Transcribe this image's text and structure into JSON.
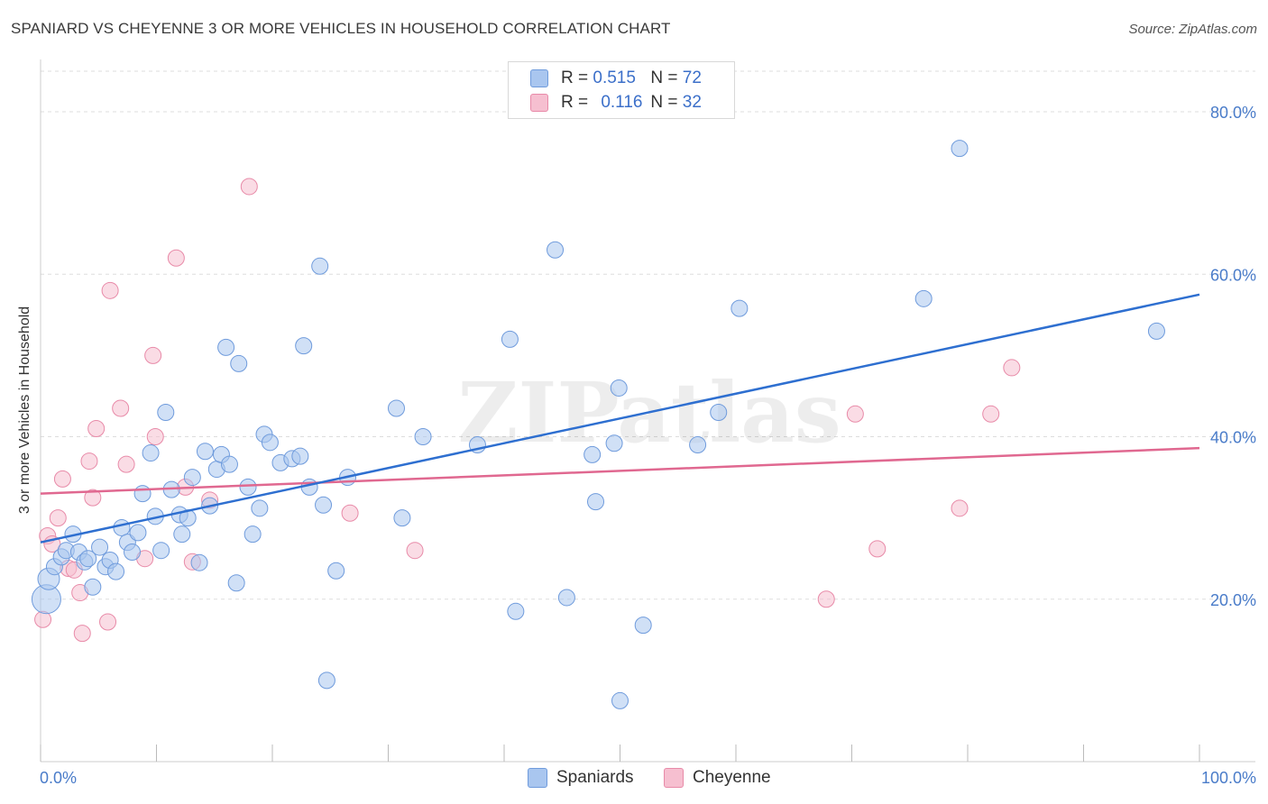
{
  "title": "SPANIARD VS CHEYENNE 3 OR MORE VEHICLES IN HOUSEHOLD CORRELATION CHART",
  "source": "Source: ZipAtlas.com",
  "watermark": "ZIPatlas",
  "legend_top": {
    "rows": [
      {
        "r_label": "R =",
        "r_value": "0.515",
        "n_label": "N =",
        "n_value": "72"
      },
      {
        "r_label": "R =",
        "r_value": "0.116",
        "n_label": "N =",
        "n_value": "32"
      }
    ]
  },
  "legend_bottom": [
    "Spaniards",
    "Cheyenne"
  ],
  "chart_data": {
    "type": "scatter",
    "xlabel": "",
    "ylabel": "3 or more Vehicles in Household",
    "xlim": [
      0,
      100
    ],
    "ylim": [
      0,
      85
    ],
    "x_tick_labels": [
      "0.0%",
      "100.0%"
    ],
    "y_ticks": [
      20,
      40,
      60,
      80
    ],
    "y_tick_labels": [
      "20.0%",
      "40.0%",
      "60.0%",
      "80.0%"
    ],
    "grid": true,
    "colors": {
      "spaniards": "#a9c6ef",
      "spaniards_edge": "#6f9bdc",
      "spaniards_line": "#2e6fd0",
      "cheyenne": "#f6bfd0",
      "cheyenne_edge": "#e88aa8",
      "cheyenne_line": "#e06890"
    },
    "series": [
      {
        "name": "Spaniards",
        "r": 0.515,
        "n": 72,
        "trend": [
          [
            0,
            27.0
          ],
          [
            100,
            57.5
          ]
        ],
        "points": [
          [
            0.5,
            20
          ],
          [
            0.7,
            22.5
          ],
          [
            1.2,
            24
          ],
          [
            1.8,
            25.2
          ],
          [
            2.2,
            26
          ],
          [
            2.8,
            28
          ],
          [
            3.3,
            25.8
          ],
          [
            3.8,
            24.6
          ],
          [
            4.1,
            25
          ],
          [
            4.5,
            21.5
          ],
          [
            5.1,
            26.4
          ],
          [
            5.6,
            24
          ],
          [
            6.0,
            24.8
          ],
          [
            6.5,
            23.4
          ],
          [
            7.0,
            28.8
          ],
          [
            7.5,
            27
          ],
          [
            7.9,
            25.8
          ],
          [
            8.4,
            28.2
          ],
          [
            8.8,
            33
          ],
          [
            9.5,
            38
          ],
          [
            9.9,
            30.2
          ],
          [
            10.4,
            26
          ],
          [
            10.8,
            43
          ],
          [
            11.3,
            33.5
          ],
          [
            12.0,
            30.4
          ],
          [
            12.2,
            28
          ],
          [
            12.7,
            30
          ],
          [
            13.1,
            35
          ],
          [
            13.7,
            24.5
          ],
          [
            14.2,
            38.2
          ],
          [
            14.6,
            31.5
          ],
          [
            15.2,
            36
          ],
          [
            15.6,
            37.8
          ],
          [
            16.3,
            36.6
          ],
          [
            16.9,
            22
          ],
          [
            17.1,
            49
          ],
          [
            16.0,
            51
          ],
          [
            17.9,
            33.8
          ],
          [
            18.3,
            28
          ],
          [
            18.9,
            31.2
          ],
          [
            19.3,
            40.3
          ],
          [
            19.8,
            39.3
          ],
          [
            20.7,
            36.8
          ],
          [
            21.7,
            37.3
          ],
          [
            22.4,
            37.6
          ],
          [
            22.7,
            51.2
          ],
          [
            23.2,
            33.8
          ],
          [
            24.1,
            61
          ],
          [
            24.4,
            31.6
          ],
          [
            25.5,
            23.5
          ],
          [
            26.5,
            35
          ],
          [
            30.7,
            43.5
          ],
          [
            31.2,
            30
          ],
          [
            33.0,
            40
          ],
          [
            37.7,
            39
          ],
          [
            40.5,
            52
          ],
          [
            41.0,
            18.5
          ],
          [
            44.4,
            63
          ],
          [
            45.4,
            20.2
          ],
          [
            47.6,
            37.8
          ],
          [
            47.9,
            32
          ],
          [
            49.9,
            46
          ],
          [
            49.5,
            39.2
          ],
          [
            50.0,
            7.5
          ],
          [
            52.0,
            16.8
          ],
          [
            56.7,
            39
          ],
          [
            58.5,
            43
          ],
          [
            60.3,
            55.8
          ],
          [
            24.7,
            10
          ],
          [
            76.2,
            57
          ],
          [
            79.3,
            75.5
          ],
          [
            96.3,
            53
          ]
        ]
      },
      {
        "name": "Cheyenne",
        "r": 0.116,
        "n": 32,
        "trend": [
          [
            0,
            33.0
          ],
          [
            100,
            38.6
          ]
        ],
        "points": [
          [
            0.2,
            17.5
          ],
          [
            0.6,
            27.8
          ],
          [
            1.0,
            26.8
          ],
          [
            1.5,
            30
          ],
          [
            1.9,
            34.8
          ],
          [
            2.4,
            23.8
          ],
          [
            2.9,
            23.6
          ],
          [
            3.4,
            20.8
          ],
          [
            3.6,
            15.8
          ],
          [
            4.2,
            37
          ],
          [
            4.5,
            32.5
          ],
          [
            4.8,
            41
          ],
          [
            5.8,
            17.2
          ],
          [
            6.0,
            58
          ],
          [
            6.9,
            43.5
          ],
          [
            7.4,
            36.6
          ],
          [
            9.0,
            25
          ],
          [
            9.7,
            50
          ],
          [
            9.9,
            40
          ],
          [
            11.7,
            62
          ],
          [
            12.5,
            33.8
          ],
          [
            13.1,
            24.6
          ],
          [
            14.6,
            32.2
          ],
          [
            26.7,
            30.6
          ],
          [
            32.3,
            26
          ],
          [
            18.0,
            70.8
          ],
          [
            67.8,
            20
          ],
          [
            70.3,
            42.8
          ],
          [
            72.2,
            26.2
          ],
          [
            79.3,
            31.2
          ],
          [
            82.0,
            42.8
          ],
          [
            83.8,
            48.5
          ]
        ]
      }
    ]
  }
}
